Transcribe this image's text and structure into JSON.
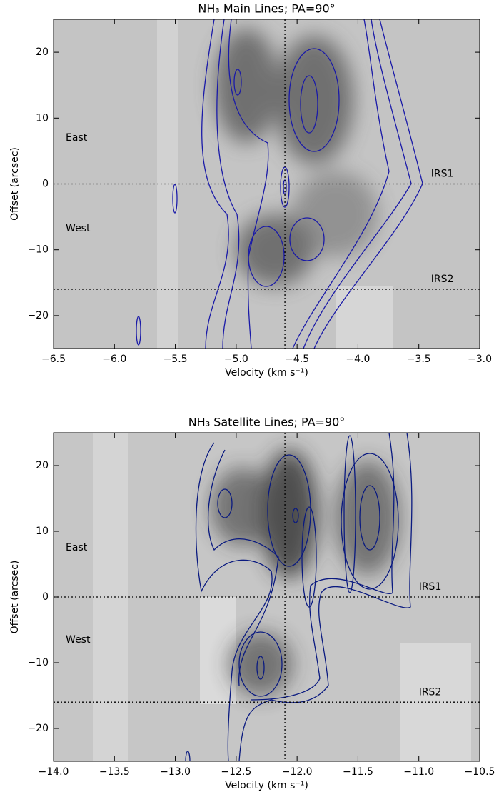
{
  "chart_data": [
    {
      "type": "contour",
      "title": "NH₃ Main Lines; PA=90°",
      "xlabel": "Velocity (km s⁻¹)",
      "ylabel": "Offset (arcsec)",
      "xlim": [
        -6.5,
        -3.0
      ],
      "xticks": [
        {
          "value": -6.5,
          "label": "−6.5"
        },
        {
          "value": -6.0,
          "label": "−6.0"
        },
        {
          "value": -5.5,
          "label": "−5.5"
        },
        {
          "value": -5.0,
          "label": "−5.0"
        },
        {
          "value": -4.5,
          "label": "−4.5"
        },
        {
          "value": -4.0,
          "label": "−4.0"
        },
        {
          "value": -3.5,
          "label": "−3.5"
        },
        {
          "value": -3.0,
          "label": "−3.0"
        }
      ],
      "ylim": [
        -25,
        25
      ],
      "yticks": [
        {
          "value": -20,
          "label": "−20"
        },
        {
          "value": -10,
          "label": "−10"
        },
        0,
        10,
        20
      ],
      "hlines": [
        0,
        -16
      ],
      "vlines": [
        -4.6
      ],
      "annotations": [
        "East",
        "West",
        "IRS1",
        "IRS2"
      ],
      "contour_color": "#1a1aa8"
    },
    {
      "type": "contour",
      "title": "NH₃ Satellite Lines; PA=90°",
      "xlabel": "Velocity (km s⁻¹)",
      "ylabel": "Offset (arcsec)",
      "xlim": [
        -14.0,
        -10.5
      ],
      "xticks": [
        {
          "value": -14.0,
          "label": "−14.0"
        },
        {
          "value": -13.5,
          "label": "−13.5"
        },
        {
          "value": -13.0,
          "label": "−13.0"
        },
        {
          "value": -12.5,
          "label": "−12.5"
        },
        {
          "value": -12.0,
          "label": "−12.0"
        },
        {
          "value": -11.5,
          "label": "−11.5"
        },
        {
          "value": -11.0,
          "label": "−11.0"
        },
        {
          "value": -10.5,
          "label": "−10.5"
        }
      ],
      "ylim": [
        -25,
        25
      ],
      "yticks": [
        {
          "value": -20,
          "label": "−20"
        },
        {
          "value": -10,
          "label": "−10"
        },
        0,
        10,
        20
      ],
      "hlines": [
        0,
        -16
      ],
      "vlines": [
        -12.1
      ],
      "annotations": [
        "East",
        "West",
        "IRS1",
        "IRS2"
      ],
      "contour_color": "#0a1a80"
    }
  ]
}
